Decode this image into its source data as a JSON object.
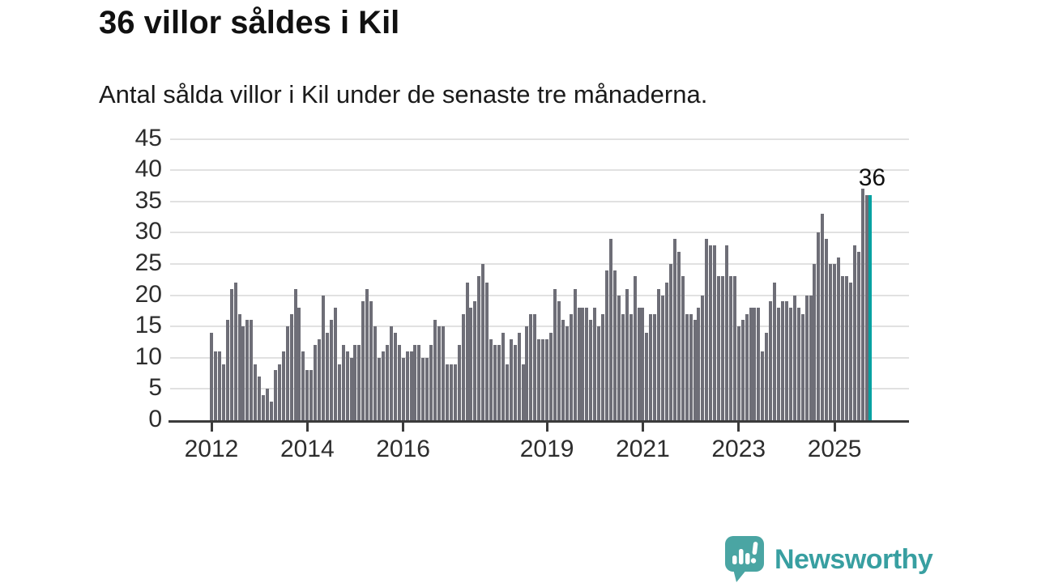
{
  "title": "36 villor såldes i Kil",
  "subtitle": "Antal sålda villor i Kil under de senaste tre månaderna.",
  "chart_data": {
    "type": "bar",
    "title": "36 villor såldes i Kil",
    "subtitle": "Antal sålda villor i Kil under de senaste tre månaderna.",
    "xlabel": "",
    "ylabel": "",
    "ylim": [
      0,
      45
    ],
    "y_ticks": [
      0,
      5,
      10,
      15,
      20,
      25,
      30,
      35,
      40,
      45
    ],
    "grid": true,
    "frequency": "monthly",
    "start_month": "2012-01",
    "x_tick_labels": [
      "2012",
      "2014",
      "2016",
      "2019",
      "2021",
      "2023",
      "2025"
    ],
    "x_tick_month_indices": [
      0,
      24,
      48,
      84,
      108,
      132,
      156
    ],
    "values": [
      14,
      11,
      11,
      9,
      16,
      21,
      22,
      17,
      15,
      16,
      16,
      9,
      7,
      4,
      5,
      3,
      8,
      9,
      11,
      15,
      17,
      21,
      18,
      11,
      8,
      8,
      12,
      13,
      20,
      14,
      16,
      18,
      9,
      12,
      11,
      10,
      12,
      12,
      19,
      21,
      19,
      15,
      10,
      11,
      12,
      15,
      14,
      12,
      10,
      11,
      11,
      12,
      12,
      10,
      10,
      12,
      16,
      15,
      15,
      9,
      9,
      9,
      12,
      17,
      22,
      18,
      19,
      23,
      25,
      22,
      13,
      12,
      12,
      14,
      9,
      13,
      12,
      14,
      9,
      15,
      17,
      17,
      13,
      13,
      13,
      14,
      21,
      19,
      16,
      15,
      17,
      21,
      18,
      18,
      18,
      16,
      18,
      15,
      17,
      24,
      29,
      24,
      20,
      17,
      21,
      17,
      23,
      18,
      18,
      14,
      17,
      17,
      21,
      20,
      22,
      25,
      29,
      27,
      23,
      17,
      17,
      16,
      18,
      20,
      29,
      28,
      28,
      23,
      23,
      28,
      23,
      23,
      15,
      16,
      17,
      18,
      18,
      18,
      11,
      14,
      19,
      22,
      18,
      19,
      19,
      18,
      20,
      18,
      17,
      20,
      20,
      25,
      30,
      33,
      29,
      25,
      25,
      26,
      23,
      23,
      22,
      28,
      27,
      37,
      36,
      36
    ],
    "highlight_index": 165,
    "highlight_value": 36,
    "highlight_label": "36",
    "bar_color": "#6e6e77",
    "highlight_color": "#00a1a1"
  },
  "branding": {
    "logo_text": "Newsworthy",
    "logo_icon": "newsworthy-logo-icon",
    "logo_text_color": "#389fa1",
    "logo_bubble_color": "#4aa5a3"
  }
}
